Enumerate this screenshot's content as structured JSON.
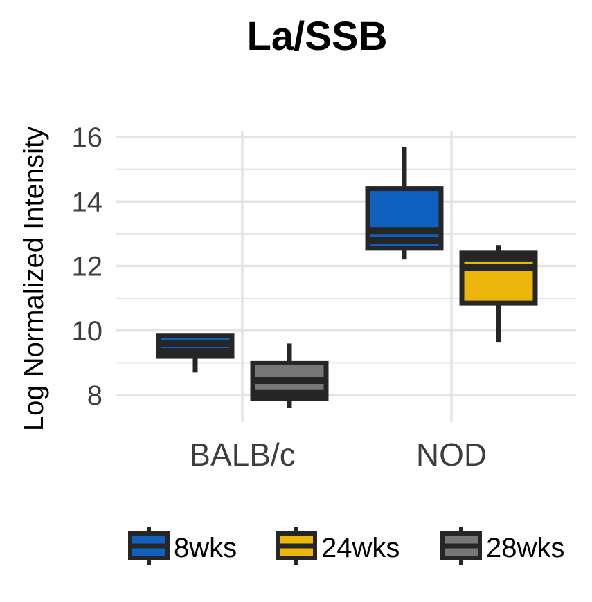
{
  "chart_data": {
    "type": "boxplot",
    "title": "La/SSB",
    "xlabel": "",
    "ylabel": "Log Normalized Intensity",
    "ylim": [
      7.2,
      16.6
    ],
    "yticks": [
      8,
      10,
      12,
      14,
      16
    ],
    "grid": true,
    "legend_position": "bottom",
    "categories": [
      "BALB/c",
      "NOD"
    ],
    "series": [
      {
        "name": "8wks",
        "color": "#1060c0"
      },
      {
        "name": "24wks",
        "color": "#ebb50c"
      },
      {
        "name": "28wks",
        "color": "#777777"
      }
    ],
    "boxes": [
      {
        "category": "BALB/c",
        "series": "8wks",
        "whisker_low": 8.7,
        "q1": 9.2,
        "median": 9.6,
        "q3": 9.85,
        "whisker_high": 9.85,
        "extra_line": 9.35
      },
      {
        "category": "BALB/c",
        "series": "28wks",
        "whisker_low": 7.6,
        "q1": 7.9,
        "median": 8.45,
        "q3": 9.0,
        "whisker_high": 9.6,
        "extra_line": 8.07
      },
      {
        "category": "NOD",
        "series": "8wks",
        "whisker_low": 12.2,
        "q1": 12.55,
        "median": 13.1,
        "q3": 14.4,
        "whisker_high": 15.7,
        "extra_line": 12.8
      },
      {
        "category": "NOD",
        "series": "24wks",
        "whisker_low": 9.65,
        "q1": 10.85,
        "median": 11.95,
        "q3": 12.4,
        "whisker_high": 12.65,
        "extra_line": 12.25
      }
    ]
  }
}
